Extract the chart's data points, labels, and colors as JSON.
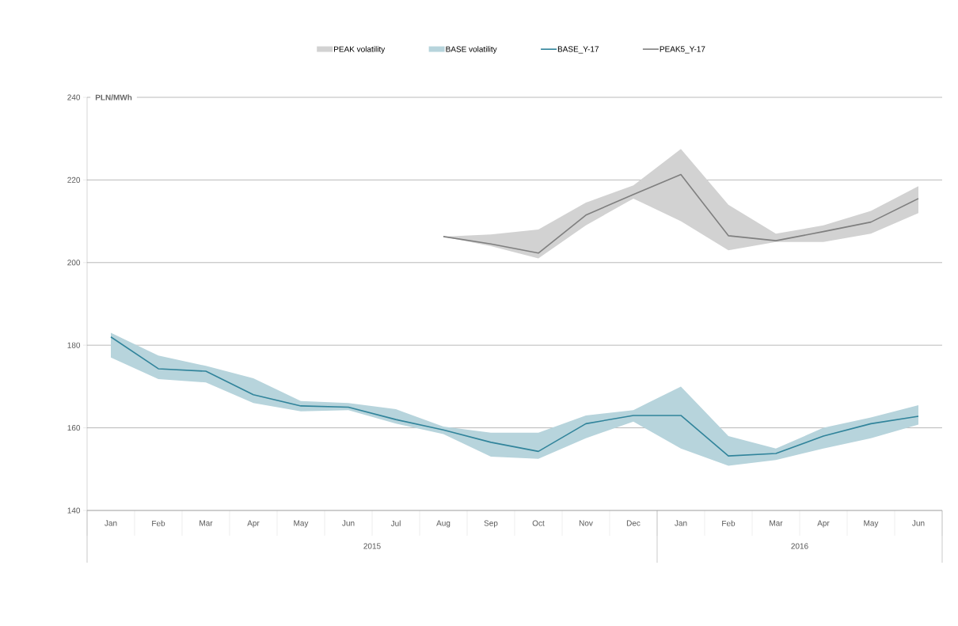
{
  "chart_data": {
    "type": "line",
    "categories": [
      "Jan",
      "Feb",
      "Mar",
      "Apr",
      "May",
      "Jun",
      "Jul",
      "Aug",
      "Sep",
      "Oct",
      "Nov",
      "Dec",
      "Jan",
      "Feb",
      "Mar",
      "Apr",
      "May",
      "Jun"
    ],
    "ylabel": "PLN/MWh",
    "ylim": [
      140,
      240
    ],
    "yticks": [
      140,
      160,
      180,
      200,
      220,
      240
    ],
    "grid": "y",
    "legend": "top",
    "annotations": [
      "PEAK volatility",
      "BASE volatility",
      "2015",
      "2016"
    ],
    "series": [
      {
        "name": "BASE_Y-17",
        "color": "#31849b",
        "values": [
          182,
          174.3,
          173.7,
          168,
          165.3,
          165,
          162,
          159.5,
          156.5,
          154.3,
          161,
          163,
          163,
          153.2,
          153.8,
          158,
          161,
          162.8
        ],
        "lower": [
          177,
          171.8,
          171,
          166,
          164,
          164.3,
          161,
          158.5,
          153,
          152.5,
          157.5,
          161.5,
          155,
          150.8,
          152.2,
          155,
          157.5,
          160.8
        ],
        "upper": [
          183,
          177.5,
          175,
          172,
          166.5,
          166,
          164.5,
          160.3,
          158.8,
          158.8,
          163,
          164.3,
          170,
          158,
          155,
          160,
          162.5,
          165.5
        ]
      },
      {
        "name": "PEAK5_Y-17",
        "color": "#7f7f7f",
        "values": [
          null,
          null,
          null,
          null,
          null,
          null,
          null,
          206.3,
          204.5,
          202.3,
          211.5,
          216.5,
          221.3,
          206.5,
          205.3,
          207.5,
          209.8,
          215.5
        ],
        "lower": [
          null,
          null,
          null,
          null,
          null,
          null,
          null,
          206.3,
          204,
          201,
          209,
          215.5,
          210,
          203,
          205,
          205,
          207,
          212
        ],
        "upper": [
          null,
          null,
          null,
          null,
          null,
          null,
          null,
          206.3,
          206.8,
          208,
          214.5,
          218.7,
          227.5,
          214,
          207,
          209,
          212.5,
          218.5
        ]
      }
    ]
  }
}
